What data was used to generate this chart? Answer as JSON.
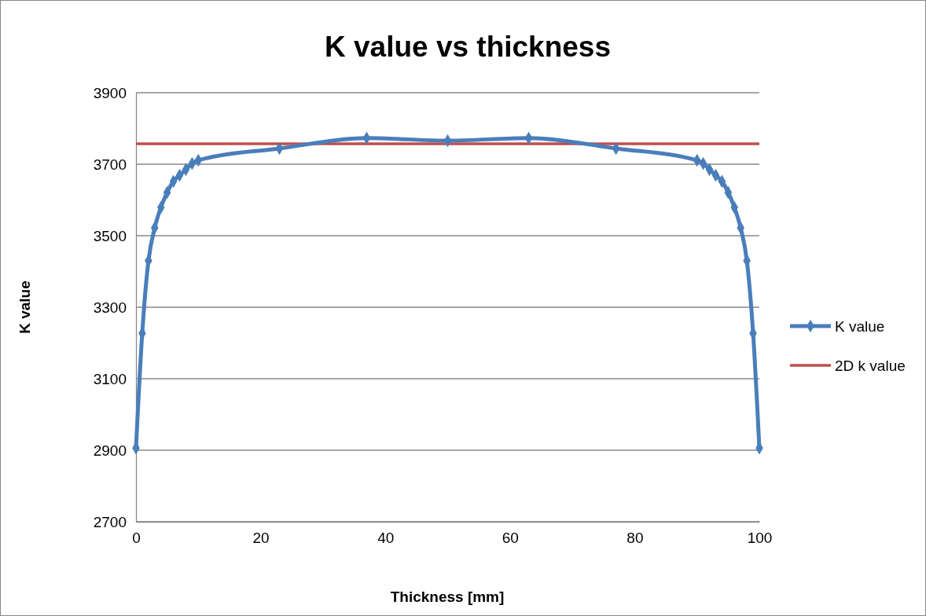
{
  "chart_data": {
    "type": "line",
    "title": "K value vs thickness",
    "xlabel": "Thickness [mm]",
    "ylabel": "K value",
    "x": [
      0,
      1,
      2,
      3,
      4,
      5,
      6,
      7,
      8,
      9,
      10,
      23,
      37,
      50,
      63,
      77,
      90,
      91,
      92,
      93,
      94,
      95,
      96,
      97,
      98,
      99,
      100
    ],
    "series": [
      {
        "name": "K value",
        "color": "#4a7ebb",
        "values": [
          2906,
          3227,
          3430,
          3522,
          3579,
          3621,
          3652,
          3669,
          3685,
          3702,
          3711,
          3744,
          3773,
          3766,
          3773,
          3744,
          3711,
          3702,
          3685,
          3669,
          3652,
          3621,
          3579,
          3522,
          3430,
          3227,
          2906
        ]
      }
    ],
    "ref_lines": [
      {
        "axis": "y",
        "value": 3757,
        "label": "2D k value",
        "color": "#c0504d"
      }
    ],
    "xlim": [
      0,
      100
    ],
    "xticks": [
      0,
      20,
      40,
      60,
      80,
      100
    ],
    "ylim": [
      2700,
      3900
    ],
    "yticks": [
      2700,
      2900,
      3100,
      3300,
      3500,
      3700,
      3900
    ],
    "grid": "y",
    "legend": "right",
    "marker": "diamond",
    "line_style": "solid"
  }
}
